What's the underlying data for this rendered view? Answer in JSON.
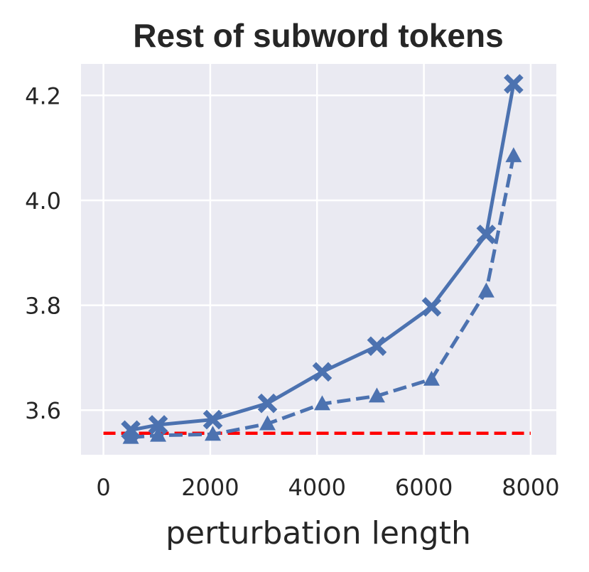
{
  "chart_data": {
    "type": "line",
    "title": "Rest of subword tokens",
    "xlabel": "perturbation length",
    "ylabel": "",
    "xlim": [
      -420,
      8480
    ],
    "ylim": [
      3.515,
      4.26
    ],
    "xticks": [
      0,
      2000,
      4000,
      6000,
      8000
    ],
    "yticks": [
      3.6,
      3.8,
      4.0,
      4.2
    ],
    "grid": true,
    "legend": "none",
    "background": "#eaeaf2",
    "series": [
      {
        "style": "solid",
        "marker": "x",
        "color": "#4c72b0",
        "x": [
          512,
          1024,
          2048,
          3072,
          4096,
          5120,
          6144,
          7168,
          7680
        ],
        "y": [
          3.562,
          3.572,
          3.582,
          3.613,
          3.673,
          3.722,
          3.797,
          3.935,
          4.222
        ]
      },
      {
        "style": "dashed",
        "marker": "triangle",
        "color": "#4c72b0",
        "x": [
          512,
          1024,
          2048,
          3072,
          4096,
          5120,
          6144,
          7168,
          7680
        ],
        "y": [
          3.548,
          3.552,
          3.554,
          3.574,
          3.612,
          3.627,
          3.659,
          3.827,
          4.085
        ]
      }
    ],
    "baseline": {
      "y": 3.556,
      "x": [
        0,
        8000
      ],
      "color": "#ff0000",
      "style": "dashed"
    }
  }
}
